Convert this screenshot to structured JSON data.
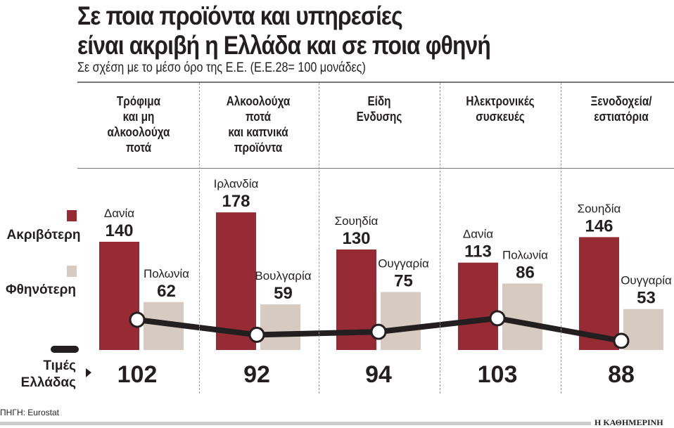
{
  "title_lines": [
    "Σε ποια προϊόντα και υπηρεσίες",
    "είναι ακριβή η Ελλάδα και σε ποια φθηνή"
  ],
  "subtitle": "Σε σχέση με το μέσο όρο της Ε.Ε. (Ε.Ε.28= 100 μονάδες)",
  "source": "ΠΗΓΗ: Eurostat",
  "logo": "Η ΚΑΘΗΜΕΡΙΝΗ",
  "colors": {
    "expensive": "#962b33",
    "cheap": "#d7cbc1",
    "greece": "#231f20"
  },
  "chart_data": {
    "type": "bar",
    "categories": [
      [
        "Τρόφιμα",
        "και μη",
        "αλκοολούχα",
        "ποτά"
      ],
      [
        "Αλκοολούχα",
        "ποτά",
        "και καπνικά",
        "προϊόντα"
      ],
      [
        "Είδη",
        "Ενδυσης"
      ],
      [
        "Ηλεκτρονικές",
        "συσκευές"
      ],
      [
        "Ξενοδοχεία/",
        "εστιατόρια"
      ]
    ],
    "legend": {
      "expensive": "Ακριβότερη",
      "cheap": "Φθηνότερη",
      "greece": [
        "Τιμές",
        "Ελλάδας"
      ]
    },
    "series": [
      {
        "name": "Ακριβότερη",
        "countries": [
          "Δανία",
          "Ιρλανδία",
          "Σουηδία",
          "Δανία",
          "Σουηδία"
        ],
        "values": [
          140,
          178,
          130,
          113,
          146
        ]
      },
      {
        "name": "Φθηνότερη",
        "countries": [
          "Πολωνία",
          "Βουλγαρία",
          "Ουγγαρία",
          "Πολωνία",
          "Ουγγαρία"
        ],
        "values": [
          62,
          59,
          75,
          86,
          53
        ]
      },
      {
        "name": "Τιμές Ελλάδας",
        "type": "line",
        "values": [
          102,
          92,
          94,
          103,
          88
        ]
      }
    ]
  }
}
